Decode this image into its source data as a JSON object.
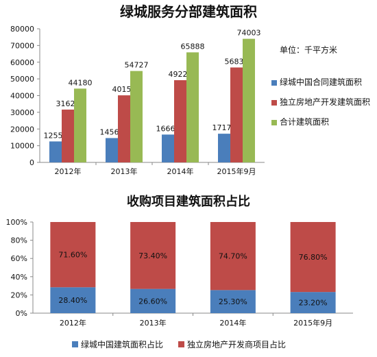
{
  "chart_data": [
    {
      "type": "bar",
      "title": "绿城服务分部建筑面积",
      "unit_note": "单位：千平方米",
      "categories": [
        "2012年",
        "2013年",
        "2014年",
        "2015年9月"
      ],
      "series": [
        {
          "name": "绿城中国合同建筑面积",
          "color": "#4a7ebb",
          "values": [
            12556,
            14569,
            16669,
            17170
          ]
        },
        {
          "name": "独立房地产开发建筑面积",
          "color": "#be4b48",
          "values": [
            31624,
            40158,
            49220,
            56833
          ]
        },
        {
          "name": "合计建筑面积",
          "color": "#98b954",
          "values": [
            44180,
            54727,
            65888,
            74003
          ]
        }
      ],
      "ylim": [
        0,
        80000
      ],
      "yticks": [
        "0",
        "10000",
        "20000",
        "30000",
        "40000",
        "50000",
        "60000",
        "70000",
        "80000"
      ],
      "legend_position": "right",
      "grid": false
    },
    {
      "type": "bar",
      "stacked": true,
      "title": "收购项目建筑面积占比",
      "categories": [
        "2012年",
        "2013年",
        "2014年",
        "2015年9月"
      ],
      "series": [
        {
          "name": "绿城中国建筑面积占比",
          "color": "#4a7ebb",
          "values": [
            28.4,
            26.6,
            25.3,
            23.2
          ],
          "labels": [
            "28.40%",
            "26.60%",
            "25.30%",
            "23.20%"
          ]
        },
        {
          "name": "独立房地产开发商项目占比",
          "color": "#be4b48",
          "values": [
            71.6,
            73.4,
            74.7,
            76.8
          ],
          "labels": [
            "71.60%",
            "73.40%",
            "74.70%",
            "76.80%"
          ]
        }
      ],
      "ylim": [
        0,
        100
      ],
      "yticks": [
        "0%",
        "20%",
        "40%",
        "60%",
        "80%",
        "100%"
      ],
      "legend_position": "bottom",
      "grid": false
    }
  ]
}
